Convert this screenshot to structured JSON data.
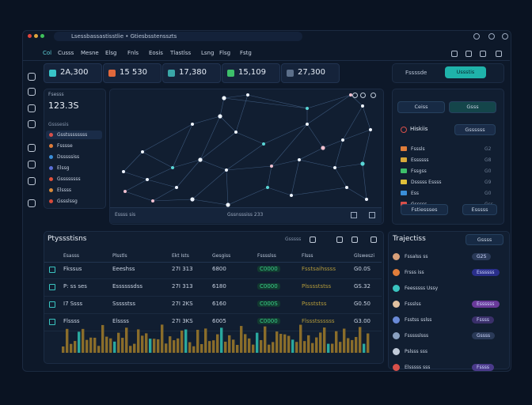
{
  "window": {
    "address": "Lsessbassastisstlie • Gtiesbsstensszts"
  },
  "nav": [
    "Col",
    "Cusss",
    "Mesne",
    "Elsg",
    "Fnls",
    "Eosis",
    "Tlastlss",
    "Lsng",
    "Flsg",
    "Fstg"
  ],
  "stats": [
    "2A,300",
    "15 530",
    "17,380",
    "15,109",
    "27,300"
  ],
  "top_right": {
    "label": "Fssssde",
    "button": "Ussstis"
  },
  "summary": {
    "heading": "Fsesss",
    "value": "123.3S",
    "subtitle": "Gsssesis",
    "items": [
      "Gsstssssssss",
      "Fsssse",
      "Dsssssiss",
      "Elssg",
      "Gssssssss",
      "Elssss",
      "Gssslssg"
    ]
  },
  "network": {
    "footer_left": "Essss sis",
    "footer_center": "Gssnsssiss 233"
  },
  "side_panel": {
    "tabs": [
      "Ceiss",
      "Gsss"
    ],
    "heading": "Hiskiis",
    "button": "Gssssss",
    "rows": [
      {
        "label": "Fsssls",
        "value": "G2"
      },
      {
        "label": "Essssss",
        "value": "G8"
      },
      {
        "label": "Fssgss",
        "value": "G0"
      },
      {
        "label": "Dsssss Essss",
        "value": "G9"
      },
      {
        "label": "Ess",
        "value": "G0"
      },
      {
        "label": "Gsssss",
        "value": "Gss"
      }
    ],
    "actions": [
      "Fstiessses",
      "Esssss"
    ]
  },
  "table": {
    "title": "Ptyssstisns",
    "filter": "Gsssss",
    "columns": [
      "Esasss",
      "Plsstls",
      "Ekt Ists",
      "Gesgiss",
      "Fsssslss",
      "Flsss",
      "Glsweszi"
    ],
    "rows": [
      [
        "Fkssus",
        "Eeeshss",
        "27I 313",
        "6800",
        "C0000",
        "Fsstsaihssss",
        "G0.0S"
      ],
      [
        "P: ss ses",
        "Essssssdss",
        "27I 313",
        "6180",
        "C0000",
        "Plsssststss",
        "GS.32"
      ],
      [
        "I7 Ssss",
        "Ssssstss",
        "27I 2KS",
        "6160",
        "C000S",
        "Pssststss",
        "G0.50"
      ],
      [
        "Flssss",
        "Elssss",
        "27I 3KS",
        "6005",
        "C0000",
        "Flssstssssss",
        "G3.00"
      ]
    ]
  },
  "trajectories": {
    "title": "Trajectiss",
    "dropdown": "Gssss",
    "rows": [
      {
        "name": "Fssalss ss",
        "tag": "G2S"
      },
      {
        "name": "Frsss iss",
        "tag": "Essssss"
      },
      {
        "name": "Feesssss Ussy"
      },
      {
        "name": "Fssslss",
        "tag": "Essssss"
      },
      {
        "name": "Fsstss sslss",
        "tag": "Fssss"
      },
      {
        "name": "Fssssslsss",
        "tag": "Gssss"
      },
      {
        "name": "Pslsss sss"
      },
      {
        "name": "Elsssss sss",
        "tag": "Fssss"
      }
    ]
  }
}
